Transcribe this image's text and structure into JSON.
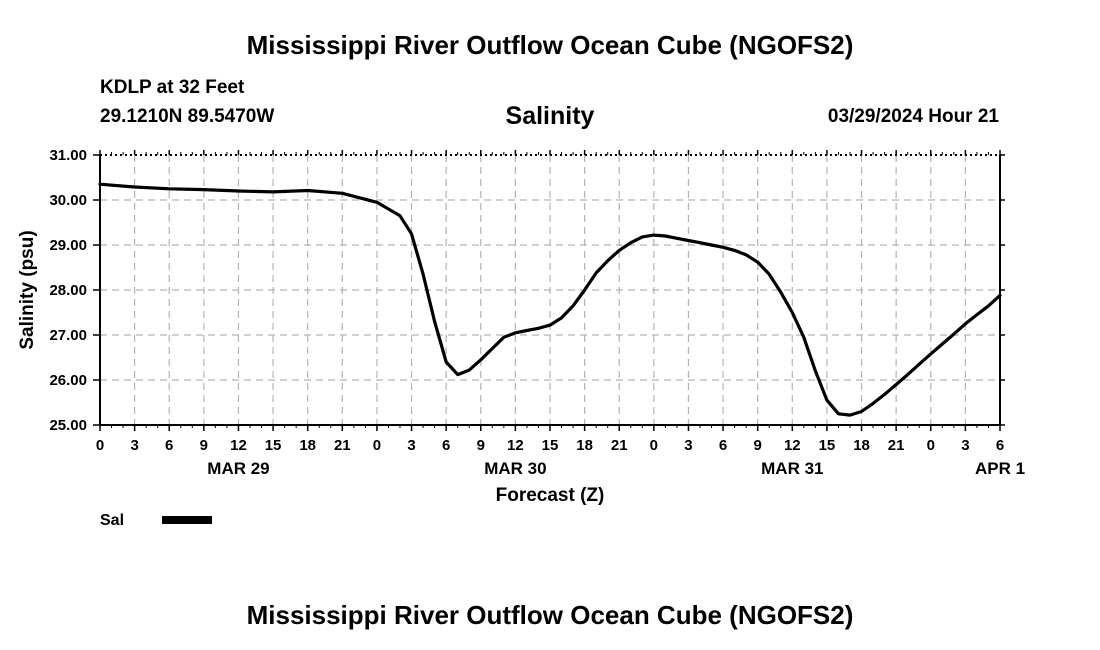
{
  "header": {
    "title": "Mississippi River Outflow Ocean Cube (NGOFS2)",
    "station": "KDLP at 32 Feet",
    "coords": "29.1210N  89.5470W",
    "variable": "Salinity",
    "datetime": "03/29/2024 Hour 21"
  },
  "footer": {
    "title": "Mississippi River Outflow Ocean Cube (NGOFS2)"
  },
  "chart_data": {
    "type": "line",
    "title": "Salinity",
    "xlabel": "Forecast (Z)",
    "ylabel": "Salinity (psu)",
    "ylim": [
      25.0,
      31.0
    ],
    "yticks": [
      "25.00",
      "26.00",
      "27.00",
      "28.00",
      "29.00",
      "30.00",
      "31.00"
    ],
    "xlim": [
      0,
      78
    ],
    "xtick_step": 3,
    "xtick_labels": [
      "0",
      "3",
      "6",
      "9",
      "12",
      "15",
      "18",
      "21",
      "0",
      "3",
      "6",
      "9",
      "12",
      "15",
      "18",
      "21",
      "0",
      "3",
      "6",
      "9",
      "12",
      "15",
      "18",
      "21",
      "0",
      "3",
      "6"
    ],
    "date_labels": [
      {
        "label": "MAR 29",
        "hour": 12
      },
      {
        "label": "MAR 30",
        "hour": 36
      },
      {
        "label": "MAR 31",
        "hour": 60
      },
      {
        "label": "APR 1",
        "hour": 78
      }
    ],
    "grid": true,
    "legend": {
      "label": "Sal",
      "placement": "bottom-left"
    },
    "series": [
      {
        "name": "Sal",
        "x": [
          0,
          3,
          6,
          9,
          12,
          15,
          18,
          21,
          24,
          26,
          27,
          28,
          29,
          30,
          31,
          32,
          33,
          34,
          35,
          36,
          37,
          38,
          39,
          40,
          41,
          42,
          43,
          44,
          45,
          46,
          47,
          48,
          49,
          50,
          51,
          52,
          53,
          54,
          55,
          56,
          57,
          58,
          59,
          60,
          61,
          62,
          63,
          64,
          65,
          66,
          67,
          68,
          69,
          70,
          71,
          72,
          73,
          74,
          75,
          76,
          77,
          78
        ],
        "values": [
          30.35,
          30.29,
          30.25,
          30.23,
          30.2,
          30.18,
          30.21,
          30.15,
          29.95,
          29.65,
          29.25,
          28.35,
          27.3,
          26.4,
          26.12,
          26.22,
          26.45,
          26.7,
          26.95,
          27.05,
          27.1,
          27.15,
          27.22,
          27.38,
          27.65,
          28.0,
          28.38,
          28.65,
          28.88,
          29.05,
          29.18,
          29.22,
          29.2,
          29.15,
          29.1,
          29.05,
          29.0,
          28.95,
          28.88,
          28.78,
          28.62,
          28.35,
          27.95,
          27.5,
          26.95,
          26.2,
          25.55,
          25.25,
          25.22,
          25.3,
          25.48,
          25.68,
          25.9,
          26.12,
          26.35,
          26.58,
          26.8,
          27.02,
          27.25,
          27.45,
          27.65,
          27.88
        ]
      }
    ]
  }
}
